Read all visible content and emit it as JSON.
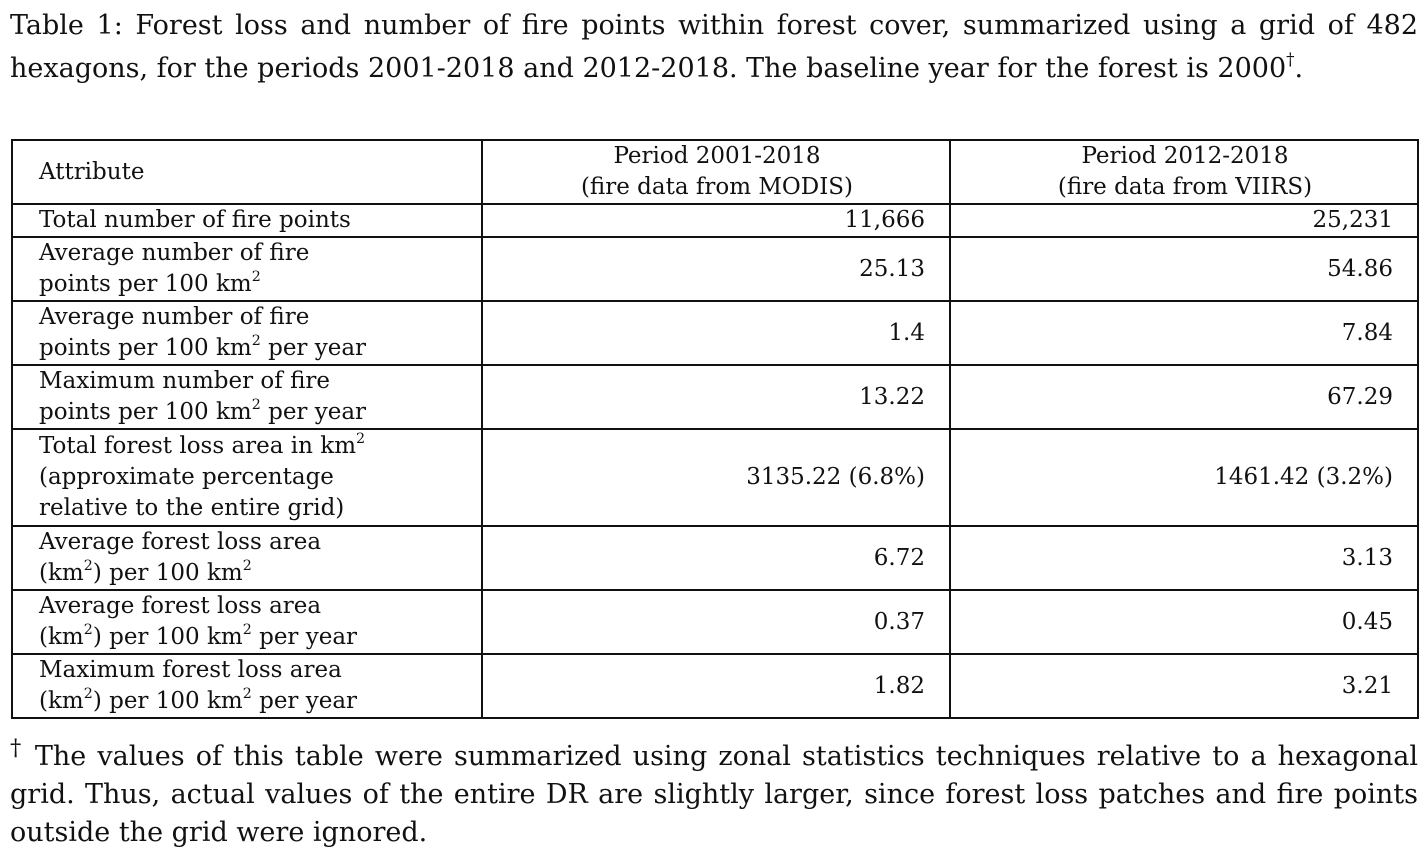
{
  "caption": {
    "label": "Table 1:",
    "text": "Forest loss and number of fire points within forest cover, summarized using a grid of 482 hexagons, for the periods 2001-2018 and 2012-2018. The baseline year for the forest is 2000",
    "mark": "†",
    "end": "."
  },
  "table": {
    "headers": [
      {
        "line1": "Attribute"
      },
      {
        "line1": "Period 2001-2018",
        "line2": "(fire data from MODIS)"
      },
      {
        "line1": "Period 2012-2018",
        "line2": "(fire data from VIIRS)"
      }
    ],
    "rows": [
      {
        "attr": {
          "l1a": "Total number of fire points"
        },
        "v1": "11,666",
        "v2": "25,231"
      },
      {
        "attr": {
          "l1a": "Average number of fire",
          "l2a": "points per 100 km",
          "l2sup": "2"
        },
        "v1": "25.13",
        "v2": "54.86"
      },
      {
        "attr": {
          "l1a": "Average number of fire",
          "l2a": "points per 100 km",
          "l2sup": "2",
          "l2b": " per year"
        },
        "v1": "1.4",
        "v2": "7.84"
      },
      {
        "attr": {
          "l1a": "Maximum number of fire",
          "l2a": "points per 100 km",
          "l2sup": "2",
          "l2b": " per year"
        },
        "v1": "13.22",
        "v2": "67.29"
      },
      {
        "attr": {
          "l1a": "Total forest loss area in km",
          "l1sup": "2",
          "l2a": "(approximate percentage",
          "l3a": "relative to the entire grid)"
        },
        "v1": "3135.22 (6.8%)",
        "v2": "1461.42 (3.2%)"
      },
      {
        "attr": {
          "l1a": "Average forest loss area",
          "l2a": "(km",
          "l2sup": "2",
          "l2b": ") per 100 km",
          "l2sup2": "2"
        },
        "v1": "6.72",
        "v2": "3.13"
      },
      {
        "attr": {
          "l1a": "Average forest loss area",
          "l2a": "(km",
          "l2sup": "2",
          "l2b": ") per 100 km",
          "l2sup2": "2",
          "l2c": " per year"
        },
        "v1": "0.37",
        "v2": "0.45"
      },
      {
        "attr": {
          "l1a": "Maximum forest loss area",
          "l2a": "(km",
          "l2sup": "2",
          "l2b": ") per 100 km",
          "l2sup2": "2",
          "l2c": " per year"
        },
        "v1": "1.82",
        "v2": "3.21"
      }
    ]
  },
  "footnote": {
    "mark": "†",
    "text": " The values of this table were summarized using zonal statistics techniques relative to a hexagonal grid.  Thus, actual values of the entire DR are slightly larger, since forest loss patches and fire points outside the grid were ignored."
  }
}
